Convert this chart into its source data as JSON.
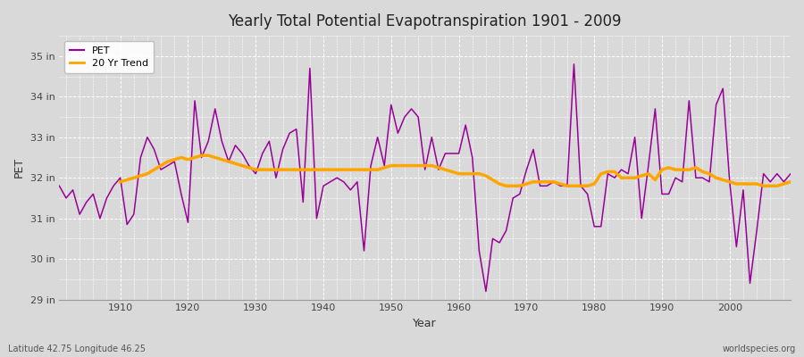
{
  "title": "Yearly Total Potential Evapotranspiration 1901 - 2009",
  "xlabel": "Year",
  "ylabel": "PET",
  "subtitle_left": "Latitude 42.75 Longitude 46.25",
  "subtitle_right": "worldspecies.org",
  "pet_color": "#990099",
  "trend_color": "#ffa500",
  "background_color": "#e0e0e0",
  "plot_bg_color": "#d8d8d8",
  "ylim_min": 29,
  "ylim_max": 35.5,
  "yticks": [
    29,
    30,
    31,
    32,
    33,
    34,
    35
  ],
  "ytick_labels": [
    "29 in",
    "30 in",
    "31 in",
    "32 in",
    "33 in",
    "34 in",
    "35 in"
  ],
  "years": [
    1901,
    1902,
    1903,
    1904,
    1905,
    1906,
    1907,
    1908,
    1909,
    1910,
    1911,
    1912,
    1913,
    1914,
    1915,
    1916,
    1917,
    1918,
    1919,
    1920,
    1921,
    1922,
    1923,
    1924,
    1925,
    1926,
    1927,
    1928,
    1929,
    1930,
    1931,
    1932,
    1933,
    1934,
    1935,
    1936,
    1937,
    1938,
    1939,
    1940,
    1941,
    1942,
    1943,
    1944,
    1945,
    1946,
    1947,
    1948,
    1949,
    1950,
    1951,
    1952,
    1953,
    1954,
    1955,
    1956,
    1957,
    1958,
    1959,
    1960,
    1961,
    1962,
    1963,
    1964,
    1965,
    1966,
    1967,
    1968,
    1969,
    1970,
    1971,
    1972,
    1973,
    1974,
    1975,
    1976,
    1977,
    1978,
    1979,
    1980,
    1981,
    1982,
    1983,
    1984,
    1985,
    1986,
    1987,
    1988,
    1989,
    1990,
    1991,
    1992,
    1993,
    1994,
    1995,
    1996,
    1997,
    1998,
    1999,
    2000,
    2001,
    2002,
    2003,
    2004,
    2005,
    2006,
    2007,
    2008,
    2009
  ],
  "pet_values": [
    31.8,
    31.5,
    31.7,
    31.1,
    31.4,
    31.6,
    31.0,
    31.5,
    31.8,
    32.0,
    30.85,
    31.1,
    32.5,
    33.0,
    32.7,
    32.2,
    32.3,
    32.4,
    31.6,
    30.9,
    33.9,
    32.5,
    32.9,
    33.7,
    32.9,
    32.4,
    32.8,
    32.6,
    32.3,
    32.1,
    32.6,
    32.9,
    32.0,
    32.7,
    33.1,
    33.2,
    31.4,
    34.7,
    31.0,
    31.8,
    31.9,
    32.0,
    31.9,
    31.7,
    31.9,
    30.2,
    32.3,
    33.0,
    32.3,
    33.8,
    33.1,
    33.5,
    33.7,
    33.5,
    32.2,
    33.0,
    32.2,
    32.6,
    32.6,
    32.6,
    33.3,
    32.5,
    30.2,
    29.2,
    30.5,
    30.4,
    30.7,
    31.5,
    31.6,
    32.2,
    32.7,
    31.8,
    31.8,
    31.9,
    31.8,
    31.8,
    34.8,
    31.8,
    31.6,
    30.8,
    30.8,
    32.1,
    32.0,
    32.2,
    32.1,
    33.0,
    31.0,
    32.3,
    33.7,
    31.6,
    31.6,
    32.0,
    31.9,
    33.9,
    32.0,
    32.0,
    31.9,
    33.8,
    34.2,
    31.9,
    30.3,
    31.7,
    29.4,
    30.7,
    32.1,
    31.9,
    32.1,
    31.9,
    32.1
  ],
  "trend_years": [
    1910,
    1911,
    1912,
    1913,
    1914,
    1915,
    1916,
    1917,
    1918,
    1919,
    1920,
    1921,
    1922,
    1923,
    1924,
    1925,
    1926,
    1927,
    1928,
    1929,
    1930,
    1931,
    1932,
    1933,
    1934,
    1935,
    1936,
    1937,
    1938,
    1939,
    1940,
    1941,
    1942,
    1943,
    1944,
    1945,
    1946,
    1947,
    1948,
    1949,
    1950,
    1951,
    1952,
    1953,
    1954,
    1955,
    1956,
    1957,
    1958,
    1959,
    1960,
    1961,
    1962,
    1963,
    1964,
    1965,
    1966,
    1967,
    1968,
    1969,
    1970,
    1971,
    1972,
    1973,
    1974,
    1975,
    1976,
    1977,
    1978,
    1979,
    1980,
    1981,
    1982,
    1983,
    1984,
    1985,
    1986,
    1987,
    1988,
    1989,
    1990,
    1991,
    1992,
    1993,
    1994,
    1995,
    1996,
    1997,
    1998,
    1999,
    2000,
    2001,
    2002,
    2003,
    2004,
    2005,
    2006,
    2007,
    2008,
    2009
  ],
  "trend_values": [
    31.9,
    31.95,
    32.0,
    32.05,
    32.1,
    32.2,
    32.3,
    32.4,
    32.45,
    32.5,
    32.45,
    32.5,
    32.55,
    32.55,
    32.5,
    32.45,
    32.4,
    32.35,
    32.3,
    32.25,
    32.2,
    32.2,
    32.2,
    32.2,
    32.2,
    32.2,
    32.2,
    32.2,
    32.2,
    32.2,
    32.2,
    32.2,
    32.2,
    32.2,
    32.2,
    32.2,
    32.2,
    32.2,
    32.2,
    32.25,
    32.3,
    32.3,
    32.3,
    32.3,
    32.3,
    32.3,
    32.3,
    32.25,
    32.2,
    32.15,
    32.1,
    32.1,
    32.1,
    32.1,
    32.05,
    31.95,
    31.85,
    31.8,
    31.8,
    31.8,
    31.85,
    31.9,
    31.9,
    31.9,
    31.9,
    31.85,
    31.8,
    31.8,
    31.8,
    31.8,
    31.85,
    32.1,
    32.15,
    32.15,
    32.0,
    32.0,
    32.0,
    32.05,
    32.1,
    31.95,
    32.2,
    32.25,
    32.2,
    32.2,
    32.2,
    32.25,
    32.15,
    32.1,
    32.0,
    31.95,
    31.9,
    31.85,
    31.85,
    31.85,
    31.85,
    31.8,
    31.8,
    31.8,
    31.85,
    31.9
  ]
}
